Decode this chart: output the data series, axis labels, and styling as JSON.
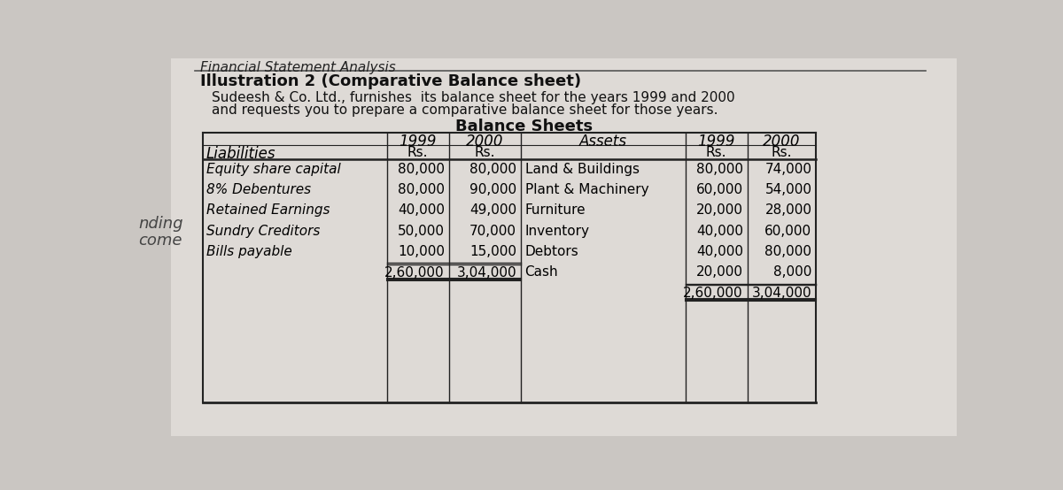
{
  "bg_color": "#cac6c2",
  "title_line1": "Financial Statement Analysis",
  "title_line2": "Illustration 2 (Comparative Balance sheet)",
  "subtitle_line1": "Sudeesh & Co. Ltd., furnishes  its balance sheet for the years 1999 and 2000",
  "subtitle_line2": "and requests you to prepare a comparative balance sheet for those years.",
  "section_title": "Balance Sheets",
  "liabilities_header": "Liabilities",
  "assets_header": "Assets",
  "year1": "1999",
  "year2": "2000",
  "rs": "Rs.",
  "liabilities": [
    "Equity share capital",
    "8% Debentures",
    "Retained Earnings",
    "Sundry Creditors",
    "Bills payable"
  ],
  "liab_1999": [
    "80,000",
    "80,000",
    "40,000",
    "50,000",
    "10,000"
  ],
  "liab_2000": [
    "80,000",
    "90,000",
    "49,000",
    "70,000",
    "15,000"
  ],
  "liab_total_1999": "2,60,000",
  "liab_total_2000": "3,04,000",
  "assets": [
    "Land & Buildings",
    "Plant & Machinery",
    "Furniture",
    "Inventory",
    "Debtors",
    "Cash"
  ],
  "assets_1999": [
    "80,000",
    "60,000",
    "20,000",
    "40,000",
    "40,000",
    "20,000"
  ],
  "assets_2000": [
    "74,000",
    "54,000",
    "28,000",
    "60,000",
    "80,000",
    "8,000"
  ],
  "assets_total_1999": "2,60,000",
  "assets_total_2000": "3,04,000",
  "left_margin_text1": "nding",
  "left_margin_text2": "come"
}
